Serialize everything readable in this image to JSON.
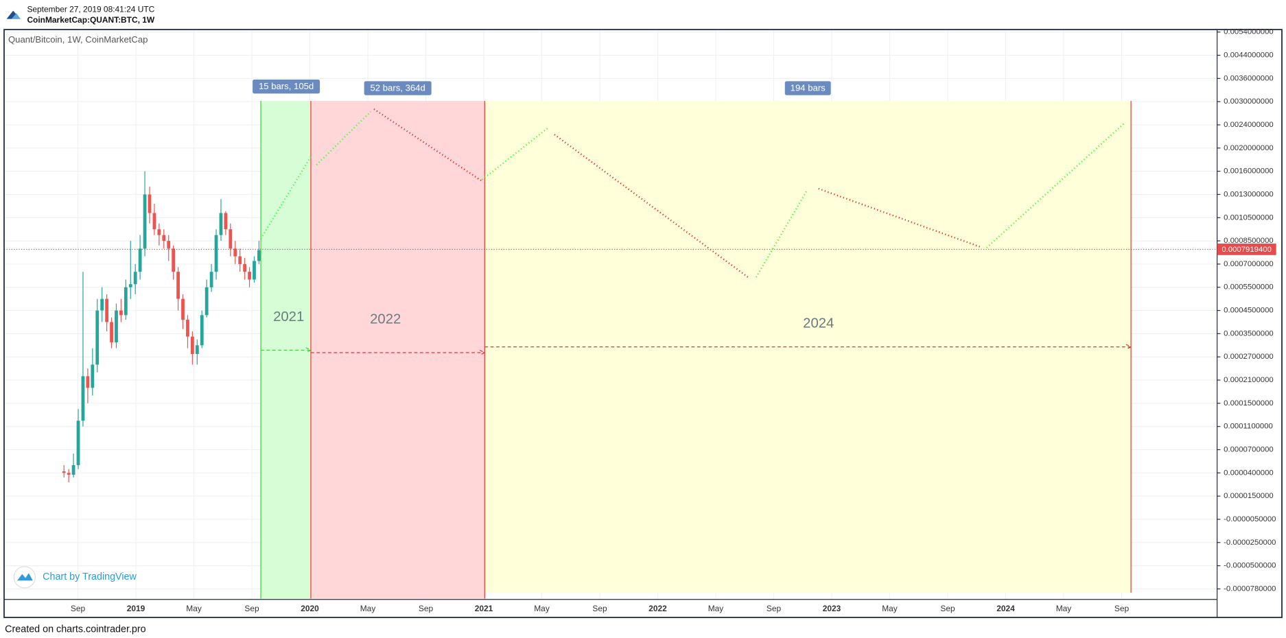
{
  "header": {
    "timestamp": "September 27, 2019 08:41:24 UTC",
    "symbol": "CoinMarketCap:QUANT:BTC, 1W"
  },
  "chart": {
    "title": "Quant/Bitcoin, 1W, CoinMarketCap",
    "price_ticks": [
      {
        "value": 0.0054,
        "label": "0.0054000000"
      },
      {
        "value": 0.0044,
        "label": "0.0044000000"
      },
      {
        "value": 0.0036,
        "label": "0.0036000000"
      },
      {
        "value": 0.003,
        "label": "0.0030000000"
      },
      {
        "value": 0.0024,
        "label": "0.0024000000"
      },
      {
        "value": 0.002,
        "label": "0.0020000000"
      },
      {
        "value": 0.0016,
        "label": "0.0016000000"
      },
      {
        "value": 0.0013,
        "label": "0.0013000000"
      },
      {
        "value": 0.00105,
        "label": "0.0010500000"
      },
      {
        "value": 0.00085,
        "label": "0.0008500000"
      },
      {
        "value": 0.0007,
        "label": "0.0007000000"
      },
      {
        "value": 0.00055,
        "label": "0.0005500000"
      },
      {
        "value": 0.00045,
        "label": "0.0004500000"
      },
      {
        "value": 0.00035,
        "label": "0.0003500000"
      },
      {
        "value": 0.00027,
        "label": "0.0002700000"
      },
      {
        "value": 0.00021,
        "label": "0.0002100000"
      },
      {
        "value": 0.00015,
        "label": "0.0001500000"
      },
      {
        "value": 0.00011,
        "label": "0.0001100000"
      },
      {
        "value": 7e-05,
        "label": "0.0000700000"
      },
      {
        "value": 4e-05,
        "label": "0.0000400000"
      },
      {
        "value": 1.5e-05,
        "label": "0.0000150000"
      },
      {
        "value": -5e-06,
        "label": "-0.0000050000"
      },
      {
        "value": -2.5e-05,
        "label": "-0.0000250000"
      },
      {
        "value": -5e-05,
        "label": "-0.0000500000"
      },
      {
        "value": -7.8e-05,
        "label": "-0.0000780000"
      }
    ],
    "time_labels": [
      "Sep",
      "2019",
      "May",
      "Sep",
      "2020",
      "May",
      "Sep",
      "2021",
      "May",
      "Sep",
      "2022",
      "May",
      "Sep",
      "2023",
      "May",
      "Sep",
      "2024",
      "May",
      "Sep"
    ],
    "last_price": {
      "value": 0.00079194,
      "label": "0.0007919400"
    },
    "candles": {
      "open": [
        4.2e-05,
        4e-05,
        3.8e-05,
        5e-05,
        0.00012,
        0.00022,
        0.00019,
        0.00025,
        0.00045,
        0.0005,
        0.0004,
        0.00032,
        0.00045,
        0.00043,
        0.00055,
        0.00057,
        0.00065,
        0.0008,
        0.0013,
        0.0011,
        0.00095,
        0.0009,
        0.00085,
        0.0008,
        0.00065,
        0.0005,
        0.00041,
        0.00034,
        0.00028,
        0.00031,
        0.00043,
        0.00055,
        0.00065,
        0.0009,
        0.0011,
        0.00095,
        0.0008,
        0.00075,
        0.0007,
        0.00065,
        0.0006,
        0.00072
      ],
      "high": [
        5e-05,
        4.5e-05,
        6.5e-05,
        0.00014,
        0.00065,
        0.00024,
        0.0003,
        0.0005,
        0.00055,
        0.00052,
        0.00042,
        0.00048,
        0.0005,
        0.0006,
        0.00085,
        0.0007,
        0.0009,
        0.0016,
        0.0014,
        0.0012,
        0.001,
        0.00095,
        0.0009,
        0.00082,
        0.00068,
        0.00052,
        0.00043,
        0.00036,
        0.00033,
        0.00045,
        0.0006,
        0.0007,
        0.00095,
        0.00125,
        0.00112,
        0.001,
        0.00085,
        0.0008,
        0.00074,
        0.00068,
        0.00075,
        0.00085
      ],
      "low": [
        3.5e-05,
        3e-05,
        3.5e-05,
        4.5e-05,
        0.00011,
        0.00015,
        0.00017,
        0.00023,
        0.0004,
        0.00036,
        0.0003,
        0.0003,
        0.0004,
        0.00041,
        0.0005,
        0.00052,
        0.0006,
        0.00075,
        0.001,
        0.0009,
        0.00082,
        0.0008,
        0.00072,
        0.0006,
        0.00045,
        0.00037,
        0.0003,
        0.00025,
        0.00025,
        0.0003,
        0.00042,
        0.00053,
        0.0006,
        0.00085,
        0.0009,
        0.00075,
        0.0007,
        0.00065,
        0.0006,
        0.00055,
        0.00058,
        0.0007
      ],
      "close": [
        4e-05,
        3.8e-05,
        5e-05,
        0.00012,
        0.00022,
        0.00019,
        0.00025,
        0.00045,
        0.0005,
        0.0004,
        0.00032,
        0.00045,
        0.00043,
        0.00055,
        0.00057,
        0.00065,
        0.0008,
        0.0013,
        0.0011,
        0.00095,
        0.0009,
        0.00085,
        0.0008,
        0.00065,
        0.0005,
        0.00041,
        0.00034,
        0.00028,
        0.00031,
        0.00043,
        0.00055,
        0.00065,
        0.0009,
        0.0011,
        0.00095,
        0.0008,
        0.00075,
        0.0007,
        0.00065,
        0.0006,
        0.00072,
        0.00079
      ]
    },
    "ranges": [
      "15 bars, 105d",
      "52 bars, 364d",
      "194 bars"
    ],
    "zone_labels": [
      "2021",
      "2022",
      "2024"
    ],
    "watermark": "Chart by TradingView"
  },
  "footer": "Created on charts.cointrader.pro"
}
